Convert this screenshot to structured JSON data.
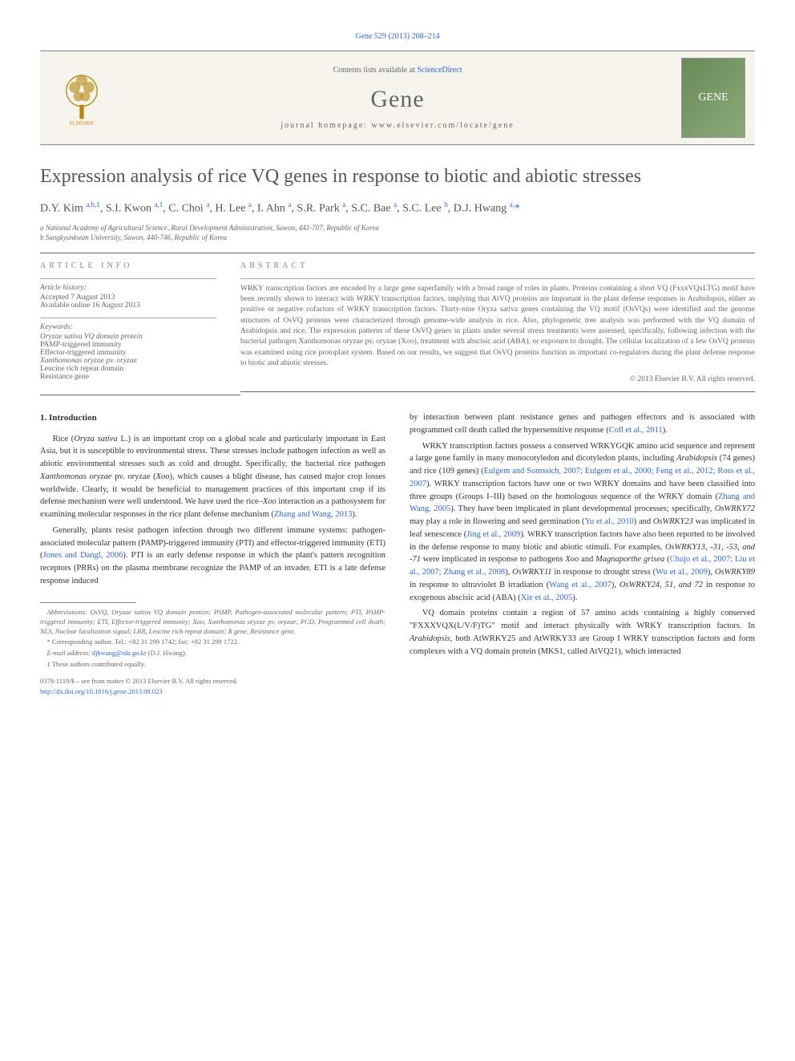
{
  "header": {
    "citation": "Gene 529 (2013) 208–214",
    "contents_prefix": "Contents lists available at ",
    "contents_link": "ScienceDirect",
    "journal_name": "Gene",
    "homepage_label": "journal homepage: www.elsevier.com/locate/gene",
    "publisher_label": "ELSEVIER"
  },
  "article": {
    "title": "Expression analysis of rice VQ genes in response to biotic and abiotic stresses",
    "authors_html": "D.Y. Kim <sup>a,b,1</sup>, S.I. Kwon <sup>a,1</sup>, C. Choi <sup>a</sup>, H. Lee <sup>a</sup>, I. Ahn <sup>a</sup>, S.R. Park <sup>a</sup>, S.C. Bae <sup>a</sup>, S.C. Lee <sup>b</sup>, D.J. Hwang <sup>a,</sup><span class='corresp-mark'>*</span>",
    "affiliations": [
      "a National Academy of Agricultural Science, Rural Development Administration, Suwon, 441-707, Republic of Korea",
      "b Sungkyunkwan University, Suwon, 440-746, Republic of Korea"
    ]
  },
  "info": {
    "heading": "article info",
    "history_label": "Article history:",
    "history_lines": [
      "Accepted 7 August 2013",
      "Available online 16 August 2013"
    ],
    "keywords_label": "Keywords:",
    "keywords": [
      "Oryzae sativa VQ domain protein",
      "PAMP-triggered immunity",
      "Effector-triggered immunity",
      "Xanthomonas oryzae pv. oryzae",
      "Leucine rich repeat domain",
      "Resistance gene"
    ]
  },
  "abstract": {
    "heading": "abstract",
    "text": "WRKY transcription factors are encoded by a large gene superfamily with a broad range of roles in plants. Proteins containing a short VQ (FxxxVQxLTG) motif have been recently shown to interact with WRKY transcription factors, implying that AtVQ proteins are important in the plant defense responses in Arabidopsis, either as positive or negative cofactors of WRKY transcription factors. Thirty-nine Oryza sativa genes containing the VQ motif (OsVQs) were identified and the genome structures of OsVQ proteins were characterized through genome-wide analysis in rice. Also, phylogenetic tree analysis was performed with the VQ domain of Arabidopsis and rice. The expression patterns of these OsVQ genes in plants under several stress treatments were assessed, specifically, following infection with the bacterial pathogen Xanthomonas oryzae pv. oryzae (Xoo), treatment with abscisic acid (ABA), or exposure to drought. The cellular localization of a few OsVQ proteins was examined using rice protoplast system. Based on our results, we suggest that OsVQ proteins function as important co-regulators during the plant defense response to biotic and abiotic stresses.",
    "copyright": "© 2013 Elsevier B.V. All rights reserved."
  },
  "body": {
    "section_title": "1. Introduction",
    "left_paragraphs": [
      "Rice (Oryza sativa L.) is an important crop on a global scale and particularly important in East Asia, but it is susceptible to environmental stress. These stresses include pathogen infection as well as abiotic environmental stresses such as cold and drought. Specifically, the bacterial rice pathogen Xanthomonas oryzae pv. oryzae (Xoo), which causes a blight disease, has caused major crop losses worldwide. Clearly, it would be beneficial to management practices of this important crop if its defense mechanism were well understood. We have used the rice–Xoo interaction as a pathosystem for examining molecular responses in the rice plant defense mechanism (Zhang and Wang, 2013).",
      "Generally, plants resist pathogen infection through two different immune systems: pathogen-associated molecular pattern (PAMP)-triggered immunity (PTI) and effector-triggered immunity (ETI) (Jones and Dangl, 2006). PTI is an early defense response in which the plant's pattern recognition receptors (PRRs) on the plasma membrane recognize the PAMP of an invader. ETI is a late defense response induced"
    ],
    "right_paragraphs": [
      "by interaction between plant resistance genes and pathogen effectors and is associated with programmed cell death called the hypersensitive response (Coll et al., 2011).",
      "WRKY transcription factors possess a conserved WRKYGQK amino acid sequence and represent a large gene family in many monocotyledon and dicotyledon plants, including Arabidopsis (74 genes) and rice (109 genes) (Eulgem and Somssich, 2007; Eulgem et al., 2000; Feng et al., 2012; Ross et al., 2007). WRKY transcription factors have one or two WRKY domains and have been classified into three groups (Groups I–III) based on the homologous sequence of the WRKY domain (Zhang and Wang, 2005). They have been implicated in plant developmental processes; specifically, OsWRKY72 may play a role in flowering and seed germination (Yu et al., 2010) and OsWRKY23 was implicated in leaf senescence (Jing et al., 2009). WRKY transcription factors have also been reported to be involved in the defense response to many biotic and abiotic stimuli. For examples, OsWRKY13, -31, -53, and -71 were implicated in response to pathogens Xoo and Magnaporthe grisea (Chujo et al., 2007; Liu et al., 2007; Zhang et al., 2008), OsWRKY11 in response to drought stress (Wu et al., 2009), OsWRKY89 in response to ultraviolet B irradiation (Wang et al., 2007), OsWRKY24, 51, and 72 in response to exogenous abscisic acid (ABA) (Xie et al., 2005).",
      "VQ domain proteins contain a region of 57 amino acids containing a highly conserved \"FXXXVQX(L/V/F)TG\" motif and interact physically with WRKY transcription factors. In Arabidopsis, both AtWRKY25 and AtWRKY33 are Group I WRKY transcription factors and form complexes with a VQ domain protein (MKS1, called AtVQ21), which interacted"
    ]
  },
  "footnotes": {
    "abbreviations": "Abbreviations: OsVQ, Oryzae sativa VQ domain protein; PAMP, Pathogen-associated molecular pattern; PTI, PAMP-triggered immunity; ETI, Effector-triggered immunity; Xoo, Xanthomonas oryzae pv. oryzae; PCD, Programmed cell death; NLS, Nuclear localization signal; LRR, Leucine rich repeat domain; R gene, Resistance gene.",
    "corresponding": "* Corresponding author. Tel.: +82 31 299 1742; fax: +82 31 299 1722.",
    "email_label": "E-mail address: ",
    "email": "djhwang@rda.go.kr",
    "email_name": " (D.J. Hwang).",
    "contributed": "1 These authors contributed equally.",
    "issn": "0378-1119/$ – see front matter © 2013 Elsevier B.V. All rights reserved.",
    "doi": "http://dx.doi.org/10.1016/j.gene.2013.08.023"
  }
}
